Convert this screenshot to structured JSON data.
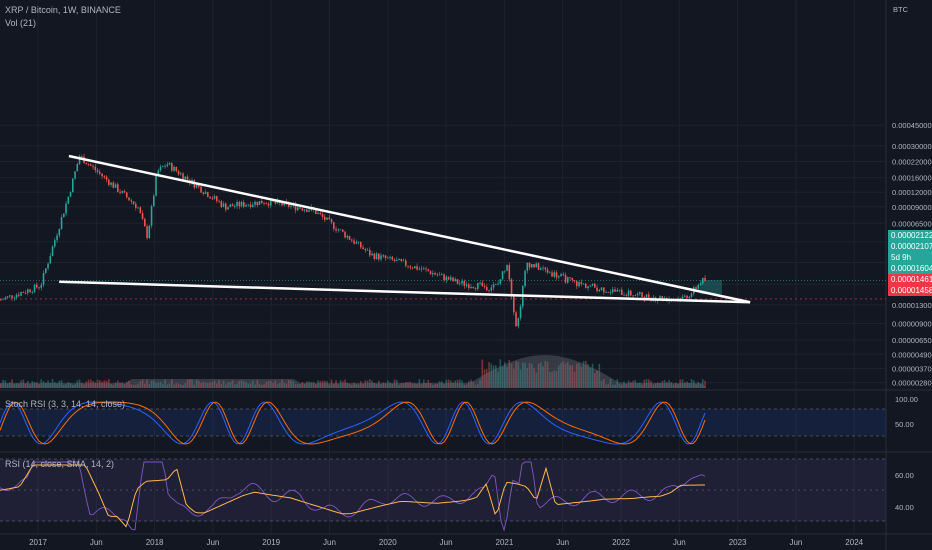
{
  "header": {
    "symbol": "XRP / Bitcoin, 1W, BINANCE",
    "volume_label": "Vol (21)",
    "stoch_label": "Stoch RSI (3, 3, 14, 14, close)",
    "rsi_label": "RSI (14, close, SMA, 14, 2)"
  },
  "price_axis": {
    "unit": "BTC",
    "ticks": [
      "0.00045000",
      "0.00030000",
      "0.00022000",
      "0.00016000",
      "0.00012000",
      "0.00009000",
      "0.00006500",
      "0.00004500",
      "0.00003000",
      "0.00001950",
      "0.00001300",
      "0.00000900",
      "0.00000650",
      "0.00000490",
      "0.00000370",
      "0.00000280"
    ]
  },
  "badges": [
    {
      "value": "0.00002122",
      "color": "#26a69a"
    },
    {
      "value": "0.00002107",
      "color": "#26a69a"
    },
    {
      "value": "5d 9h",
      "color": "#26a69a"
    },
    {
      "value": "0.00001604",
      "color": "#26a69a"
    },
    {
      "value": "0.00001461",
      "color": "#f23645"
    },
    {
      "value": "0.00001458",
      "color": "#f23645"
    }
  ],
  "stoch_axis": {
    "ticks": [
      "100.00",
      "50.00"
    ]
  },
  "rsi_axis": {
    "ticks": [
      "60.00",
      "40.00"
    ]
  },
  "time_axis": {
    "labels": [
      "2017",
      "Jun",
      "2018",
      "Jun",
      "2019",
      "Jun",
      "2020",
      "Jun",
      "2021",
      "Jun",
      "2022",
      "Jun",
      "2023",
      "Jun",
      "2024"
    ]
  },
  "colors": {
    "up": "#26a69a",
    "down": "#ef5350",
    "trendline": "#ffffff",
    "stoch_k": "#2962ff",
    "stoch_d": "#ff6d00",
    "rsi": "#7e57c2",
    "rsi_ma": "#ffb74d"
  },
  "chart_data": {
    "type": "line",
    "series": [
      {
        "values": [
          1.35e-05,
          1.9e-05,
          0.00012,
          0.000245,
          9e-05,
          5e-05,
          0.00018,
          0.00021,
          9e-05,
          0.0001,
          8.5e-05,
          3.5e-05,
          3e-05,
          2.5e-05,
          2e-05,
          1.85e-05,
          1.9e-05,
          3e-05,
          8e-06,
          3e-05,
          2e-05,
          1.7e-05,
          1.5e-05,
          1.48e-05,
          1.65e-05,
          2.1e-05
        ]
      }
    ],
    "x": [
      "2016-09",
      "2017-02",
      "2017-05",
      "2017-06",
      "2017-12",
      "2018-01",
      "2018-02",
      "2018-03",
      "2018-09",
      "2019-01",
      "2019-06",
      "2019-12",
      "2020-03",
      "2020-06",
      "2020-09",
      "2020-12",
      "2021-01",
      "2021-02",
      "2021-03",
      "2021-04",
      "2021-09",
      "2022-01",
      "2022-05",
      "2022-08",
      "2022-09",
      "2022-10"
    ],
    "trendlines": [
      {
        "from": [
          "2017-05",
          0.000245
        ],
        "to": [
          "2022-12",
          1.48e-05
        ]
      },
      {
        "from": [
          "2017-04",
          2.05e-05
        ],
        "to": [
          "2022-12",
          1.48e-05
        ]
      }
    ],
    "ylabel": "BTC",
    "yscale": "log"
  }
}
